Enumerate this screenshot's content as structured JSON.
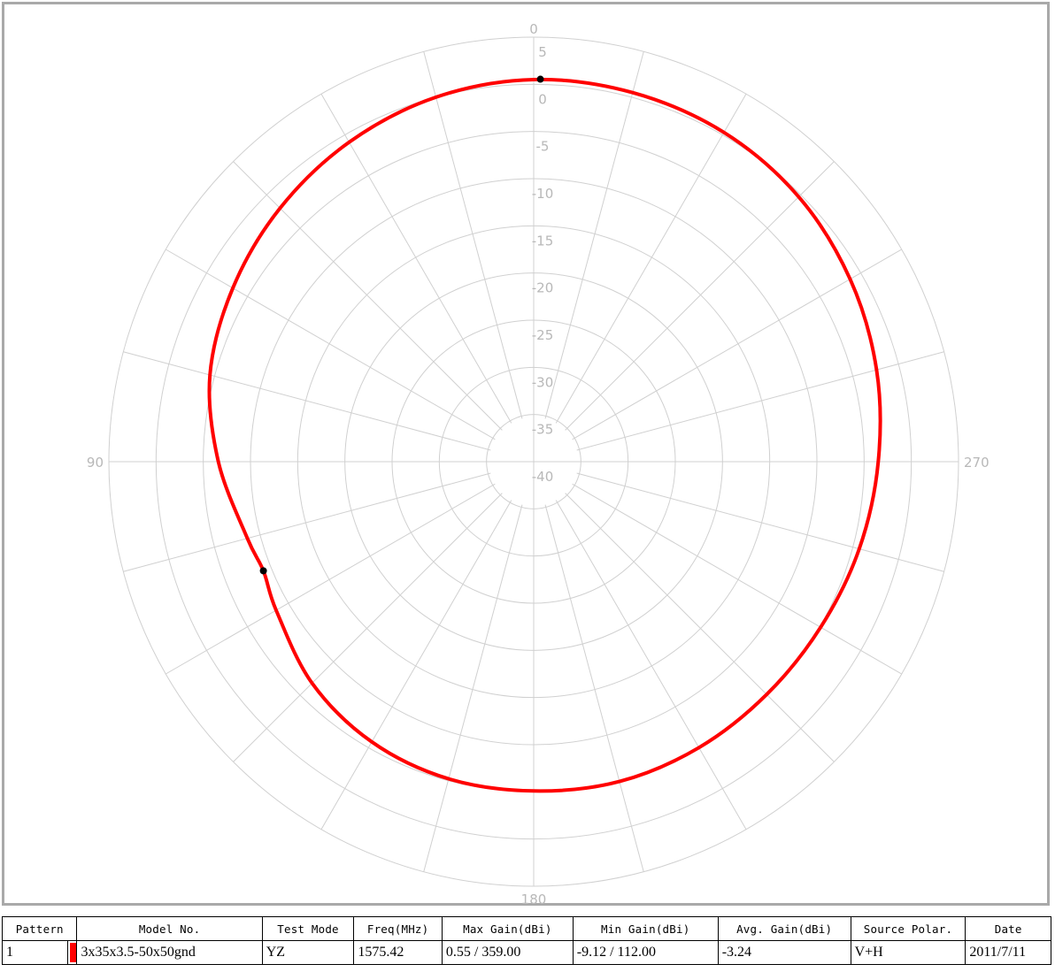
{
  "chart_data": {
    "type": "polar",
    "radial_labels": [
      "5",
      "0",
      "-5",
      "-10",
      "-15",
      "-20",
      "-25",
      "-30",
      "-35",
      "-40"
    ],
    "radial_range": [
      -40,
      5
    ],
    "angle_labels": [
      "0",
      "90",
      "180",
      "270"
    ],
    "angle_step": 15,
    "grid": true,
    "series": [
      {
        "color": "#ff0000",
        "theta": [
          0,
          15,
          30,
          45,
          60,
          75,
          90,
          105,
          112,
          120,
          135,
          150,
          165,
          180,
          195,
          210,
          225,
          240,
          255,
          270,
          285,
          300,
          315,
          330,
          345,
          359
        ],
        "values": [
          0.5,
          0.0,
          -0.9,
          -2.0,
          -3.2,
          -4.5,
          -6.6,
          -8.6,
          -9.12,
          -8.5,
          -6.8,
          -5.7,
          -5.2,
          -5.1,
          -4.9,
          -5.0,
          -5.1,
          -4.9,
          -4.3,
          -3.5,
          -2.4,
          -1.3,
          -0.3,
          0.3,
          0.5,
          0.55
        ]
      }
    ],
    "markers": [
      {
        "theta": 359,
        "value": 0.55
      },
      {
        "theta": 112,
        "value": -9.12
      }
    ]
  },
  "legend_table": {
    "headers": [
      "Pattern",
      "",
      "Model No.",
      "Test Mode",
      "Freq(MHz)",
      "Max Gain(dBi)",
      "Min Gain(dBi)",
      "Avg. Gain(dBi)",
      "Source Polar.",
      "Date"
    ],
    "row": {
      "pattern": "1",
      "swatch_color": "#ff0000",
      "model_no": "3x35x3.5-50x50gnd",
      "test_mode": "YZ",
      "freq": "1575.42",
      "max_gain": "0.55 / 359.00",
      "min_gain": "-9.12 / 112.00",
      "avg_gain": "-3.24",
      "source_polar": "V+H",
      "date": "2011/7/11"
    }
  }
}
